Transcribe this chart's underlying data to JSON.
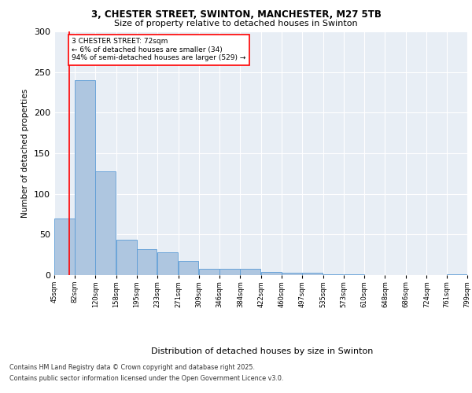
{
  "title_line1": "3, CHESTER STREET, SWINTON, MANCHESTER, M27 5TB",
  "title_line2": "Size of property relative to detached houses in Swinton",
  "xlabel": "Distribution of detached houses by size in Swinton",
  "ylabel": "Number of detached properties",
  "footer_line1": "Contains HM Land Registry data © Crown copyright and database right 2025.",
  "footer_line2": "Contains public sector information licensed under the Open Government Licence v3.0.",
  "annotation_line1": "3 CHESTER STREET: 72sqm",
  "annotation_line2": "← 6% of detached houses are smaller (34)",
  "annotation_line3": "94% of semi-detached houses are larger (529) →",
  "bar_left_edges": [
    45,
    82,
    120,
    158,
    195,
    233,
    271,
    309,
    346,
    384,
    422,
    460,
    497,
    535,
    573,
    610,
    648,
    686,
    724,
    761
  ],
  "bar_heights": [
    70,
    240,
    128,
    44,
    32,
    28,
    17,
    8,
    8,
    8,
    4,
    3,
    3,
    1,
    1,
    0,
    0,
    0,
    0,
    1
  ],
  "bin_width": 37,
  "bar_color": "#aec6e0",
  "bar_edge_color": "#5b9bd5",
  "tick_labels": [
    "45sqm",
    "82sqm",
    "120sqm",
    "158sqm",
    "195sqm",
    "233sqm",
    "271sqm",
    "309sqm",
    "346sqm",
    "384sqm",
    "422sqm",
    "460sqm",
    "497sqm",
    "535sqm",
    "573sqm",
    "610sqm",
    "648sqm",
    "686sqm",
    "724sqm",
    "761sqm",
    "799sqm"
  ],
  "red_line_x": 72,
  "annotation_box_color": "white",
  "annotation_box_edge": "red",
  "background_color": "#e8eef5",
  "plot_background": "#e8eef5",
  "ylim": [
    0,
    300
  ],
  "yticks": [
    0,
    50,
    100,
    150,
    200,
    250,
    300
  ]
}
